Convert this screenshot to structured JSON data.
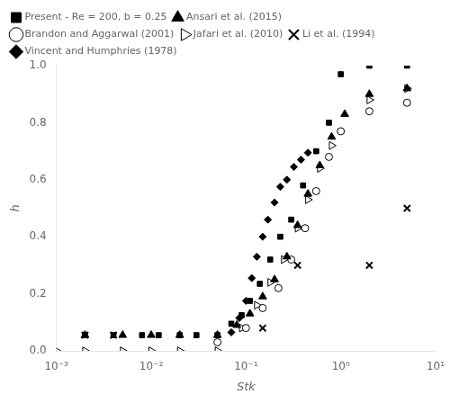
{
  "chart_data": {
    "type": "scatter",
    "xlabel": "Stk",
    "ylabel": "h",
    "log": "x",
    "grid": false,
    "legend": "upper left",
    "xlim": [
      0.001,
      10
    ],
    "ylim": [
      0,
      1.0
    ],
    "xticks": [
      {
        "value": 0.001,
        "label": "10⁻³"
      },
      {
        "value": 0.01,
        "label": "10⁻²"
      },
      {
        "value": 0.1,
        "label": "10⁻¹"
      },
      {
        "value": 1,
        "label": "10⁰"
      },
      {
        "value": 10,
        "label": "10¹"
      }
    ],
    "yticks": [
      {
        "value": 0,
        "label": "0.0"
      },
      0.2,
      0.4,
      0.6,
      0.8,
      {
        "value": 1.0,
        "label": "1.0"
      }
    ],
    "series": [
      {
        "name": "Present - Re = 200, b = 0.25",
        "color": "black",
        "marker": "square",
        "x": [
          0.002,
          0.004,
          0.008,
          0.012,
          0.02,
          0.03,
          0.05,
          0.07,
          0.09,
          0.11,
          0.14,
          0.18,
          0.23,
          0.3,
          0.4,
          0.55,
          0.75,
          1.0,
          2.0,
          5.0
        ],
        "values": [
          0.055,
          0.055,
          0.055,
          0.055,
          0.055,
          0.055,
          0.055,
          0.095,
          0.125,
          0.175,
          0.235,
          0.32,
          0.4,
          0.46,
          0.58,
          0.7,
          0.8,
          0.97,
          1.0,
          1.0
        ]
      },
      {
        "name": "Ansari et al. (2015)",
        "color": "black",
        "marker": "triangle",
        "x": [
          0.002,
          0.005,
          0.01,
          0.02,
          0.05,
          0.08,
          0.11,
          0.15,
          0.2,
          0.27,
          0.35,
          0.45,
          0.6,
          0.8,
          1.1,
          2.0,
          5.0
        ],
        "values": [
          0.055,
          0.055,
          0.055,
          0.055,
          0.055,
          0.09,
          0.13,
          0.19,
          0.25,
          0.33,
          0.44,
          0.55,
          0.65,
          0.75,
          0.83,
          0.9,
          0.92
        ]
      },
      {
        "name": "Brandon and Aggarwal (2001)",
        "color": "black",
        "marker": "open circle",
        "x": [
          0.05,
          0.1,
          0.15,
          0.22,
          0.3,
          0.42,
          0.55,
          0.75,
          1.0,
          2.0,
          5.0
        ],
        "values": [
          0.03,
          0.08,
          0.15,
          0.22,
          0.32,
          0.43,
          0.56,
          0.68,
          0.77,
          0.84,
          0.87
        ]
      },
      {
        "name": "Jafari et al. (2010)",
        "color": "black",
        "marker": "open triangle-right",
        "x": [
          0.001,
          0.002,
          0.005,
          0.01,
          0.02,
          0.05,
          0.09,
          0.13,
          0.18,
          0.25,
          0.35,
          0.45,
          0.6,
          0.8,
          2.0,
          5.0
        ],
        "values": [
          0.0,
          0.0,
          0.0,
          0.0,
          0.0,
          0.0,
          0.08,
          0.16,
          0.24,
          0.32,
          0.43,
          0.53,
          0.64,
          0.72,
          0.88,
          0.92
        ]
      },
      {
        "name": "Li et al. (1994)",
        "color": "black",
        "marker": "cross",
        "x": [
          0.002,
          0.004,
          0.15,
          0.35,
          2.0,
          5.0
        ],
        "values": [
          0.055,
          0.055,
          0.08,
          0.3,
          0.3,
          0.5
        ]
      },
      {
        "name": "Vincent and Humphries (1978)",
        "color": "black",
        "marker": "diamond",
        "x": [
          0.07,
          0.085,
          0.1,
          0.115,
          0.13,
          0.15,
          0.17,
          0.2,
          0.23,
          0.27,
          0.32,
          0.38,
          0.45
        ],
        "values": [
          0.065,
          0.115,
          0.175,
          0.255,
          0.33,
          0.4,
          0.46,
          0.52,
          0.575,
          0.6,
          0.645,
          0.67,
          0.695
        ]
      }
    ]
  }
}
